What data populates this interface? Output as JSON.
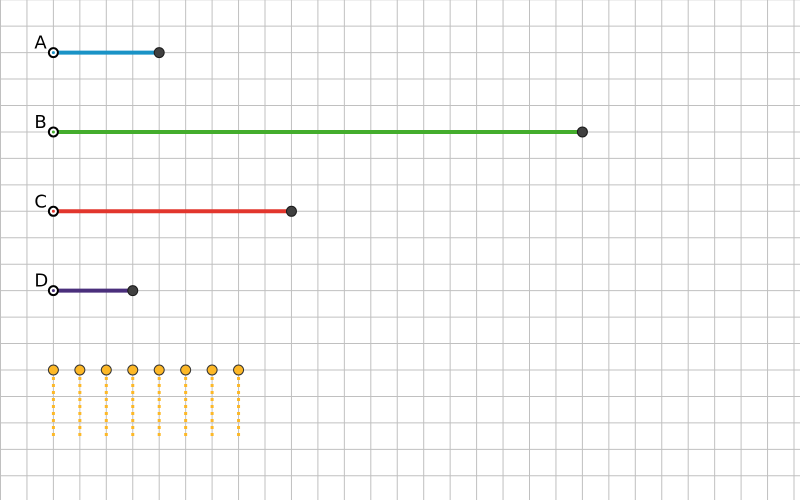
{
  "grid": {
    "visible": true,
    "color": "#c0c0c0"
  },
  "segments": [
    {
      "label": "A",
      "length": 4,
      "color": "#1a93c6"
    },
    {
      "label": "B",
      "length": 20,
      "color": "#44ad2d"
    },
    {
      "label": "C",
      "length": 9,
      "color": "#e2362d"
    },
    {
      "label": "D",
      "length": 3,
      "color": "#4a2f7c"
    }
  ],
  "endpoint_color": "#404040",
  "dotted_points": {
    "count": 8,
    "color": "#fdb827",
    "line_length": 2.5
  }
}
